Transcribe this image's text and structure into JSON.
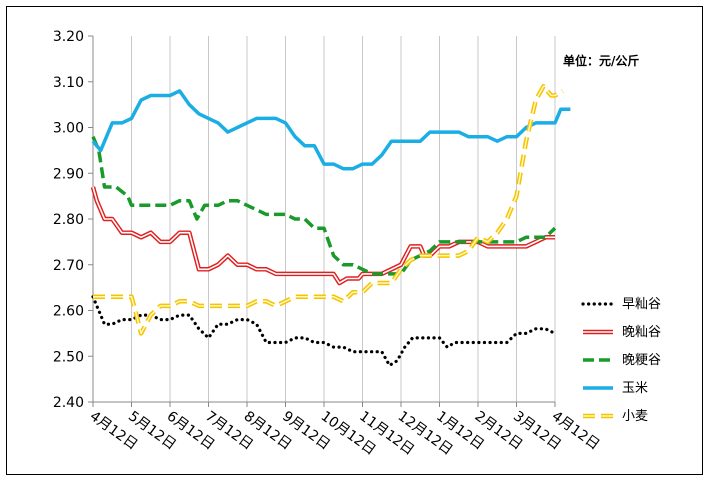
{
  "chart_data": {
    "type": "line",
    "unit_label": "单位：元/公斤",
    "x_ticks": [
      "4月12日",
      "5月12日",
      "6月12日",
      "7月12日",
      "8月12日",
      "9月12日",
      "10月12日",
      "11月12日",
      "12月12日",
      "1月12日",
      "2月12日",
      "3月12日",
      "4月12日"
    ],
    "y_ticks": [
      "2.40",
      "2.50",
      "2.60",
      "2.70",
      "2.80",
      "2.90",
      "3.00",
      "3.10",
      "3.20"
    ],
    "ylim": [
      2.4,
      3.2
    ],
    "grid": "vertical",
    "legend_position": "right",
    "x_domain": [
      0,
      12
    ],
    "series": [
      {
        "name": "早籼谷",
        "color": "#000000",
        "style": "dotted",
        "points": [
          [
            0,
            2.63
          ],
          [
            0.1,
            2.61
          ],
          [
            0.3,
            2.57
          ],
          [
            0.5,
            2.57
          ],
          [
            0.75,
            2.58
          ],
          [
            1.0,
            2.58
          ],
          [
            1.25,
            2.59
          ],
          [
            1.5,
            2.59
          ],
          [
            1.75,
            2.58
          ],
          [
            2.0,
            2.58
          ],
          [
            2.25,
            2.59
          ],
          [
            2.5,
            2.59
          ],
          [
            2.75,
            2.56
          ],
          [
            3.0,
            2.54
          ],
          [
            3.25,
            2.57
          ],
          [
            3.5,
            2.57
          ],
          [
            3.75,
            2.58
          ],
          [
            4.0,
            2.58
          ],
          [
            4.25,
            2.57
          ],
          [
            4.5,
            2.53
          ],
          [
            4.75,
            2.53
          ],
          [
            5.0,
            2.53
          ],
          [
            5.25,
            2.54
          ],
          [
            5.5,
            2.54
          ],
          [
            5.75,
            2.53
          ],
          [
            6.0,
            2.53
          ],
          [
            6.25,
            2.52
          ],
          [
            6.5,
            2.52
          ],
          [
            6.75,
            2.51
          ],
          [
            7.0,
            2.51
          ],
          [
            7.25,
            2.51
          ],
          [
            7.5,
            2.51
          ],
          [
            7.7,
            2.48
          ],
          [
            7.9,
            2.49
          ],
          [
            8.1,
            2.52
          ],
          [
            8.3,
            2.54
          ],
          [
            8.5,
            2.54
          ],
          [
            8.75,
            2.54
          ],
          [
            9.0,
            2.54
          ],
          [
            9.2,
            2.52
          ],
          [
            9.4,
            2.53
          ],
          [
            9.75,
            2.53
          ],
          [
            10.0,
            2.53
          ],
          [
            10.25,
            2.53
          ],
          [
            10.5,
            2.53
          ],
          [
            10.75,
            2.53
          ],
          [
            11.0,
            2.55
          ],
          [
            11.25,
            2.55
          ],
          [
            11.5,
            2.56
          ],
          [
            11.75,
            2.56
          ],
          [
            12.0,
            2.55
          ]
        ]
      },
      {
        "name": "晚籼谷",
        "color": "#e02020",
        "style": "double",
        "points": [
          [
            0,
            2.87
          ],
          [
            0.1,
            2.84
          ],
          [
            0.3,
            2.8
          ],
          [
            0.5,
            2.8
          ],
          [
            0.75,
            2.77
          ],
          [
            1.0,
            2.77
          ],
          [
            1.25,
            2.76
          ],
          [
            1.5,
            2.77
          ],
          [
            1.75,
            2.75
          ],
          [
            2.0,
            2.75
          ],
          [
            2.25,
            2.77
          ],
          [
            2.5,
            2.77
          ],
          [
            2.75,
            2.69
          ],
          [
            3.0,
            2.69
          ],
          [
            3.25,
            2.7
          ],
          [
            3.5,
            2.72
          ],
          [
            3.75,
            2.7
          ],
          [
            4.0,
            2.7
          ],
          [
            4.25,
            2.69
          ],
          [
            4.5,
            2.69
          ],
          [
            4.75,
            2.68
          ],
          [
            5.0,
            2.68
          ],
          [
            5.5,
            2.68
          ],
          [
            6.0,
            2.68
          ],
          [
            6.25,
            2.68
          ],
          [
            6.4,
            2.66
          ],
          [
            6.6,
            2.67
          ],
          [
            6.9,
            2.67
          ],
          [
            7.0,
            2.68
          ],
          [
            7.5,
            2.68
          ],
          [
            7.75,
            2.69
          ],
          [
            8.0,
            2.7
          ],
          [
            8.25,
            2.74
          ],
          [
            8.5,
            2.74
          ],
          [
            8.6,
            2.72
          ],
          [
            8.75,
            2.72
          ],
          [
            9.0,
            2.74
          ],
          [
            9.25,
            2.74
          ],
          [
            9.5,
            2.75
          ],
          [
            10.0,
            2.75
          ],
          [
            10.25,
            2.74
          ],
          [
            10.5,
            2.74
          ],
          [
            11.0,
            2.74
          ],
          [
            11.25,
            2.74
          ],
          [
            11.5,
            2.75
          ],
          [
            11.75,
            2.76
          ],
          [
            12.0,
            2.76
          ]
        ]
      },
      {
        "name": "晚粳谷",
        "color": "#1a9a2a",
        "style": "dashed",
        "points": [
          [
            0,
            2.98
          ],
          [
            0.15,
            2.95
          ],
          [
            0.3,
            2.87
          ],
          [
            0.6,
            2.87
          ],
          [
            0.9,
            2.85
          ],
          [
            1.0,
            2.83
          ],
          [
            1.5,
            2.83
          ],
          [
            2.0,
            2.83
          ],
          [
            2.25,
            2.84
          ],
          [
            2.5,
            2.84
          ],
          [
            2.7,
            2.8
          ],
          [
            2.9,
            2.83
          ],
          [
            3.25,
            2.83
          ],
          [
            3.5,
            2.84
          ],
          [
            3.75,
            2.84
          ],
          [
            4.0,
            2.83
          ],
          [
            4.5,
            2.81
          ],
          [
            5.0,
            2.81
          ],
          [
            5.25,
            2.8
          ],
          [
            5.5,
            2.8
          ],
          [
            5.75,
            2.78
          ],
          [
            6.0,
            2.78
          ],
          [
            6.25,
            2.72
          ],
          [
            6.5,
            2.7
          ],
          [
            6.75,
            2.7
          ],
          [
            7.0,
            2.69
          ],
          [
            7.25,
            2.68
          ],
          [
            7.75,
            2.68
          ],
          [
            8.0,
            2.68
          ],
          [
            8.25,
            2.71
          ],
          [
            8.5,
            2.72
          ],
          [
            8.75,
            2.73
          ],
          [
            9.0,
            2.75
          ],
          [
            9.5,
            2.75
          ],
          [
            10.0,
            2.75
          ],
          [
            10.5,
            2.75
          ],
          [
            11.0,
            2.75
          ],
          [
            11.25,
            2.76
          ],
          [
            11.75,
            2.76
          ],
          [
            12.0,
            2.78
          ]
        ]
      },
      {
        "name": "玉米",
        "color": "#1aaee5",
        "style": "solid",
        "points": [
          [
            0,
            2.97
          ],
          [
            0.2,
            2.95
          ],
          [
            0.5,
            3.01
          ],
          [
            0.75,
            3.01
          ],
          [
            1.0,
            3.02
          ],
          [
            1.25,
            3.06
          ],
          [
            1.5,
            3.07
          ],
          [
            1.75,
            3.07
          ],
          [
            2.0,
            3.07
          ],
          [
            2.25,
            3.08
          ],
          [
            2.5,
            3.05
          ],
          [
            2.75,
            3.03
          ],
          [
            3.0,
            3.02
          ],
          [
            3.25,
            3.01
          ],
          [
            3.5,
            2.99
          ],
          [
            3.75,
            3.0
          ],
          [
            4.0,
            3.01
          ],
          [
            4.25,
            3.02
          ],
          [
            4.5,
            3.02
          ],
          [
            4.75,
            3.02
          ],
          [
            5.0,
            3.01
          ],
          [
            5.25,
            2.98
          ],
          [
            5.5,
            2.96
          ],
          [
            5.75,
            2.96
          ],
          [
            6.0,
            2.92
          ],
          [
            6.25,
            2.92
          ],
          [
            6.5,
            2.91
          ],
          [
            6.75,
            2.91
          ],
          [
            7.0,
            2.92
          ],
          [
            7.25,
            2.92
          ],
          [
            7.5,
            2.94
          ],
          [
            7.75,
            2.97
          ],
          [
            8.0,
            2.97
          ],
          [
            8.5,
            2.97
          ],
          [
            8.75,
            2.99
          ],
          [
            9.0,
            2.99
          ],
          [
            9.5,
            2.99
          ],
          [
            9.75,
            2.98
          ],
          [
            10.0,
            2.98
          ],
          [
            10.25,
            2.98
          ],
          [
            10.5,
            2.97
          ],
          [
            10.75,
            2.98
          ],
          [
            11.0,
            2.98
          ],
          [
            11.25,
            3.0
          ],
          [
            11.5,
            3.01
          ],
          [
            11.75,
            3.01
          ],
          [
            12.0,
            3.01
          ],
          [
            12.15,
            3.04
          ],
          [
            12.4,
            3.04
          ]
        ]
      },
      {
        "name": "小麦",
        "color": "#f5c400",
        "style": "dashed",
        "points": [
          [
            0,
            2.63
          ],
          [
            0.5,
            2.63
          ],
          [
            1.0,
            2.63
          ],
          [
            1.1,
            2.6
          ],
          [
            1.25,
            2.55
          ],
          [
            1.5,
            2.59
          ],
          [
            1.75,
            2.61
          ],
          [
            2.0,
            2.61
          ],
          [
            2.25,
            2.62
          ],
          [
            2.5,
            2.62
          ],
          [
            2.75,
            2.61
          ],
          [
            3.0,
            2.61
          ],
          [
            3.5,
            2.61
          ],
          [
            4.0,
            2.61
          ],
          [
            4.25,
            2.62
          ],
          [
            4.5,
            2.62
          ],
          [
            4.75,
            2.61
          ],
          [
            5.0,
            2.62
          ],
          [
            5.25,
            2.63
          ],
          [
            5.5,
            2.63
          ],
          [
            5.75,
            2.63
          ],
          [
            6.0,
            2.63
          ],
          [
            6.25,
            2.63
          ],
          [
            6.5,
            2.62
          ],
          [
            6.75,
            2.64
          ],
          [
            7.0,
            2.64
          ],
          [
            7.25,
            2.66
          ],
          [
            7.5,
            2.66
          ],
          [
            7.75,
            2.66
          ],
          [
            8.0,
            2.69
          ],
          [
            8.25,
            2.71
          ],
          [
            8.5,
            2.72
          ],
          [
            9.0,
            2.72
          ],
          [
            9.5,
            2.72
          ],
          [
            9.75,
            2.73
          ],
          [
            10.0,
            2.76
          ],
          [
            10.25,
            2.75
          ],
          [
            10.5,
            2.77
          ],
          [
            10.75,
            2.8
          ],
          [
            11.0,
            2.85
          ],
          [
            11.25,
            2.97
          ],
          [
            11.5,
            3.06
          ],
          [
            11.7,
            3.09
          ],
          [
            11.9,
            3.07
          ],
          [
            12.0,
            3.07
          ],
          [
            12.2,
            3.08
          ]
        ]
      }
    ]
  }
}
